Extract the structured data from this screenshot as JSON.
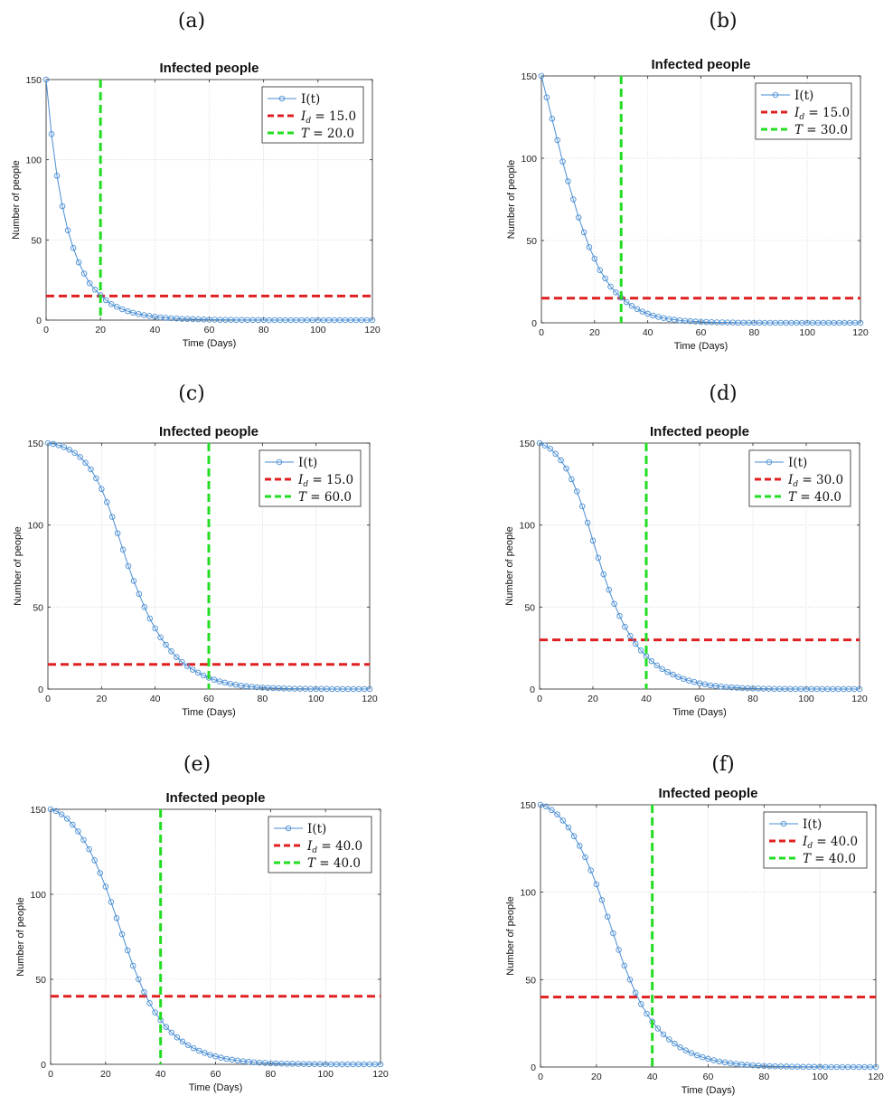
{
  "chart_data": [
    {
      "panel": "(a)",
      "type": "line",
      "title": "Infected people",
      "xlabel": "Time (Days)",
      "ylabel": "Number of people",
      "xlim": [
        0,
        120
      ],
      "ylim": [
        0,
        150
      ],
      "xticks": [
        "0",
        "20",
        "40",
        "60",
        "80",
        "100",
        "120"
      ],
      "yticks": [
        "0",
        "50",
        "100",
        "150"
      ],
      "grid": true,
      "legend_position": "top-right",
      "series": [
        {
          "name": "I(t)",
          "color": "#4a8ed3",
          "marker": "circle",
          "x": [
            0,
            2,
            4,
            6,
            8,
            10,
            12,
            14,
            16,
            18,
            20,
            22,
            24,
            26,
            28,
            30,
            32,
            34,
            36,
            38,
            40,
            42,
            44,
            46,
            48,
            50,
            52,
            54,
            56,
            58,
            60,
            62,
            64,
            66,
            68,
            70,
            72,
            74,
            76,
            78,
            80,
            82,
            84,
            86,
            88,
            90,
            92,
            94,
            96,
            98,
            100,
            102,
            104,
            106,
            108,
            110,
            112,
            114,
            116,
            118,
            120
          ],
          "y": [
            150,
            116,
            90,
            71,
            56,
            45,
            36,
            29,
            23,
            19,
            15.5,
            12.5,
            10,
            8.3,
            6.8,
            5.6,
            4.6,
            3.8,
            3.1,
            2.6,
            2.1,
            1.7,
            1.4,
            1.2,
            1,
            0.8,
            0.7,
            0.6,
            0.5,
            0.4,
            0.3,
            0.3,
            0.2,
            0.2,
            0.2,
            0.1,
            0.1,
            0.1,
            0.1,
            0.1,
            0.1,
            0,
            0,
            0,
            0,
            0,
            0,
            0,
            0,
            0,
            0,
            0,
            0,
            0,
            0,
            0,
            0,
            0,
            0,
            0,
            0
          ]
        }
      ],
      "hline": {
        "name_prefix": "I",
        "name_sub": "d",
        "name_rest": " = 15.0",
        "value": 15,
        "color": "#e02020"
      },
      "vline": {
        "name_prefix": "T",
        "name_sub": "",
        "name_rest": " = 20.0",
        "value": 20,
        "color": "#22dd22"
      }
    },
    {
      "panel": "(b)",
      "type": "line",
      "title": "Infected people",
      "xlabel": "Time (Days)",
      "ylabel": "Number of people",
      "xlim": [
        0,
        120
      ],
      "ylim": [
        0,
        150
      ],
      "xticks": [
        "0",
        "20",
        "40",
        "60",
        "80",
        "100",
        "120"
      ],
      "yticks": [
        "0",
        "50",
        "100",
        "150"
      ],
      "grid": true,
      "legend_position": "top-right",
      "series": [
        {
          "name": "I(t)",
          "color": "#4a8ed3",
          "marker": "circle",
          "x": [
            0,
            2,
            4,
            6,
            8,
            10,
            12,
            14,
            16,
            18,
            20,
            22,
            24,
            26,
            28,
            30,
            32,
            34,
            36,
            38,
            40,
            42,
            44,
            46,
            48,
            50,
            52,
            54,
            56,
            58,
            60,
            62,
            64,
            66,
            68,
            70,
            72,
            74,
            76,
            78,
            80,
            82,
            84,
            86,
            88,
            90,
            92,
            94,
            96,
            98,
            100,
            102,
            104,
            106,
            108,
            110,
            112,
            114,
            116,
            118,
            120
          ],
          "y": [
            150,
            137,
            124,
            111,
            98,
            86,
            75,
            64,
            55,
            46,
            39,
            32,
            27,
            22,
            18.5,
            15.3,
            12.6,
            10.3,
            8.4,
            6.8,
            5.5,
            4.4,
            3.6,
            2.9,
            2.3,
            1.9,
            1.5,
            1.2,
            1,
            0.8,
            0.6,
            0.5,
            0.4,
            0.3,
            0.3,
            0.2,
            0.2,
            0.1,
            0.1,
            0.1,
            0.1,
            0.1,
            0,
            0,
            0,
            0,
            0,
            0,
            0,
            0,
            0,
            0,
            0,
            0,
            0,
            0,
            0,
            0,
            0,
            0,
            0
          ]
        }
      ],
      "hline": {
        "name_prefix": "I",
        "name_sub": "d",
        "name_rest": " = 15.0",
        "value": 15,
        "color": "#e02020"
      },
      "vline": {
        "name_prefix": "T",
        "name_sub": "",
        "name_rest": " = 30.0",
        "value": 30,
        "color": "#22dd22"
      }
    },
    {
      "panel": "(c)",
      "type": "line",
      "title": "Infected people",
      "xlabel": "Time (Days)",
      "ylabel": "Number of people",
      "xlim": [
        0,
        120
      ],
      "ylim": [
        0,
        150
      ],
      "xticks": [
        "0",
        "20",
        "40",
        "60",
        "80",
        "100",
        "120"
      ],
      "yticks": [
        "0",
        "50",
        "100",
        "150"
      ],
      "grid": true,
      "legend_position": "top-right",
      "series": [
        {
          "name": "I(t)",
          "color": "#4a8ed3",
          "marker": "circle",
          "x": [
            0,
            2,
            4,
            6,
            8,
            10,
            12,
            14,
            16,
            18,
            20,
            22,
            24,
            26,
            28,
            30,
            32,
            34,
            36,
            38,
            40,
            42,
            44,
            46,
            48,
            50,
            52,
            54,
            56,
            58,
            60,
            62,
            64,
            66,
            68,
            70,
            72,
            74,
            76,
            78,
            80,
            82,
            84,
            86,
            88,
            90,
            92,
            94,
            96,
            98,
            100,
            102,
            104,
            106,
            108,
            110,
            112,
            114,
            116,
            118,
            120
          ],
          "y": [
            150,
            149.5,
            148.7,
            147.5,
            146,
            144,
            141.5,
            138,
            134,
            128.5,
            122,
            114,
            105,
            95,
            85,
            75,
            66,
            58,
            50,
            43,
            37,
            31.5,
            27,
            23,
            19.5,
            16.5,
            14,
            11.8,
            10,
            8.3,
            6.9,
            5.7,
            4.7,
            3.9,
            3.2,
            2.6,
            2.1,
            1.7,
            1.4,
            1.1,
            0.9,
            0.7,
            0.6,
            0.5,
            0.4,
            0.3,
            0.2,
            0.2,
            0.2,
            0.1,
            0.1,
            0.1,
            0.1,
            0,
            0,
            0,
            0,
            0,
            0,
            0,
            0
          ]
        }
      ],
      "hline": {
        "name_prefix": "I",
        "name_sub": "d",
        "name_rest": " = 15.0",
        "value": 15,
        "color": "#e02020"
      },
      "vline": {
        "name_prefix": "T",
        "name_sub": "",
        "name_rest": " = 60.0",
        "value": 60,
        "color": "#22dd22"
      }
    },
    {
      "panel": "(d)",
      "type": "line",
      "title": "Infected people",
      "xlabel": "Time (Days)",
      "ylabel": "Number of people",
      "xlim": [
        0,
        120
      ],
      "ylim": [
        0,
        150
      ],
      "xticks": [
        "0",
        "20",
        "40",
        "60",
        "80",
        "100",
        "120"
      ],
      "yticks": [
        "0",
        "50",
        "100",
        "150"
      ],
      "grid": true,
      "legend_position": "top-right",
      "series": [
        {
          "name": "I(t)",
          "color": "#4a8ed3",
          "marker": "circle",
          "x": [
            0,
            2,
            4,
            6,
            8,
            10,
            12,
            14,
            16,
            18,
            20,
            22,
            24,
            26,
            28,
            30,
            32,
            34,
            36,
            38,
            40,
            42,
            44,
            46,
            48,
            50,
            52,
            54,
            56,
            58,
            60,
            62,
            64,
            66,
            68,
            70,
            72,
            74,
            76,
            78,
            80,
            82,
            84,
            86,
            88,
            90,
            92,
            94,
            96,
            98,
            100,
            102,
            104,
            106,
            108,
            110,
            112,
            114,
            116,
            118,
            120
          ],
          "y": [
            150,
            148.5,
            146.5,
            143.5,
            139.5,
            134.5,
            128,
            120.5,
            111.5,
            101.5,
            90.5,
            80,
            70,
            60.5,
            52,
            44.5,
            38,
            32.4,
            27.6,
            23.5,
            20,
            17,
            14.4,
            12.2,
            10.4,
            8.8,
            7.4,
            6.2,
            5.2,
            4.3,
            3.5,
            2.9,
            2.3,
            1.9,
            1.5,
            1.2,
            1,
            0.8,
            0.6,
            0.5,
            0.4,
            0.3,
            0.2,
            0.2,
            0.1,
            0.1,
            0.1,
            0.1,
            0,
            0,
            0,
            0,
            0,
            0,
            0,
            0,
            0,
            0,
            0,
            0,
            0
          ]
        }
      ],
      "hline": {
        "name_prefix": "I",
        "name_sub": "d",
        "name_rest": " = 30.0",
        "value": 30,
        "color": "#e02020"
      },
      "vline": {
        "name_prefix": "T",
        "name_sub": "",
        "name_rest": " = 40.0",
        "value": 40,
        "color": "#22dd22"
      }
    },
    {
      "panel": "(e)",
      "type": "line",
      "title": "Infected people",
      "xlabel": "Time (Days)",
      "ylabel": "Number of people",
      "xlim": [
        0,
        120
      ],
      "ylim": [
        0,
        150
      ],
      "xticks": [
        "0",
        "20",
        "40",
        "60",
        "80",
        "100",
        "120"
      ],
      "yticks": [
        "0",
        "50",
        "100",
        "150"
      ],
      "grid": true,
      "legend_position": "top-right",
      "series": [
        {
          "name": "I(t)",
          "color": "#4a8ed3",
          "marker": "circle",
          "x": [
            0,
            2,
            4,
            6,
            8,
            10,
            12,
            14,
            16,
            18,
            20,
            22,
            24,
            26,
            28,
            30,
            32,
            34,
            36,
            38,
            40,
            42,
            44,
            46,
            48,
            50,
            52,
            54,
            56,
            58,
            60,
            62,
            64,
            66,
            68,
            70,
            72,
            74,
            76,
            78,
            80,
            82,
            84,
            86,
            88,
            90,
            92,
            94,
            96,
            98,
            100,
            102,
            104,
            106,
            108,
            110,
            112,
            114,
            116,
            118,
            120
          ],
          "y": [
            150,
            149,
            147,
            144.5,
            141,
            137,
            132,
            126.5,
            120,
            112.5,
            104.5,
            95.5,
            86,
            76.5,
            67,
            58,
            50,
            42.5,
            36,
            30.5,
            26,
            22,
            18.7,
            15.8,
            13.4,
            11.3,
            9.5,
            8,
            6.7,
            5.6,
            4.7,
            3.9,
            3.2,
            2.7,
            2.2,
            1.8,
            1.5,
            1.2,
            1,
            0.8,
            0.6,
            0.5,
            0.4,
            0.3,
            0.3,
            0.2,
            0.2,
            0.1,
            0.1,
            0.1,
            0.1,
            0,
            0,
            0,
            0,
            0,
            0,
            0,
            0,
            0,
            0
          ]
        }
      ],
      "hline": {
        "name_prefix": "I",
        "name_sub": "d",
        "name_rest": " = 40.0",
        "value": 40,
        "color": "#e02020"
      },
      "vline": {
        "name_prefix": "T",
        "name_sub": "",
        "name_rest": " = 40.0",
        "value": 40,
        "color": "#22dd22"
      }
    },
    {
      "panel": "(f)",
      "type": "line",
      "title": "Infected people",
      "xlabel": "Time (Days)",
      "ylabel": "Number of people",
      "xlim": [
        0,
        120
      ],
      "ylim": [
        0,
        150
      ],
      "xticks": [
        "0",
        "20",
        "40",
        "60",
        "80",
        "100",
        "120"
      ],
      "yticks": [
        "0",
        "50",
        "100",
        "150"
      ],
      "grid": true,
      "legend_position": "top-right",
      "series": [
        {
          "name": "I(t)",
          "color": "#4a8ed3",
          "marker": "circle",
          "x": [
            0,
            2,
            4,
            6,
            8,
            10,
            12,
            14,
            16,
            18,
            20,
            22,
            24,
            26,
            28,
            30,
            32,
            34,
            36,
            38,
            40,
            42,
            44,
            46,
            48,
            50,
            52,
            54,
            56,
            58,
            60,
            62,
            64,
            66,
            68,
            70,
            72,
            74,
            76,
            78,
            80,
            82,
            84,
            86,
            88,
            90,
            92,
            94,
            96,
            98,
            100,
            102,
            104,
            106,
            108,
            110,
            112,
            114,
            116,
            118,
            120
          ],
          "y": [
            150,
            149,
            147,
            144.5,
            141,
            137,
            132,
            126.5,
            120,
            112.5,
            104.5,
            95.5,
            86,
            76.5,
            67,
            58,
            50,
            42.5,
            36,
            30.5,
            26,
            22,
            18.7,
            15.8,
            13.4,
            11.3,
            9.5,
            8,
            6.7,
            5.6,
            4.7,
            3.9,
            3.2,
            2.7,
            2.2,
            1.8,
            1.5,
            1.2,
            1,
            0.8,
            0.6,
            0.5,
            0.4,
            0.3,
            0.3,
            0.2,
            0.2,
            0.1,
            0.1,
            0.1,
            0.1,
            0,
            0,
            0,
            0,
            0,
            0,
            0,
            0,
            0,
            0
          ]
        }
      ],
      "hline": {
        "name_prefix": "I",
        "name_sub": "d",
        "name_rest": " = 40.0",
        "value": 40,
        "color": "#e02020"
      },
      "vline": {
        "name_prefix": "T",
        "name_sub": "",
        "name_rest": " = 40.0",
        "value": 40,
        "color": "#22dd22"
      }
    }
  ]
}
